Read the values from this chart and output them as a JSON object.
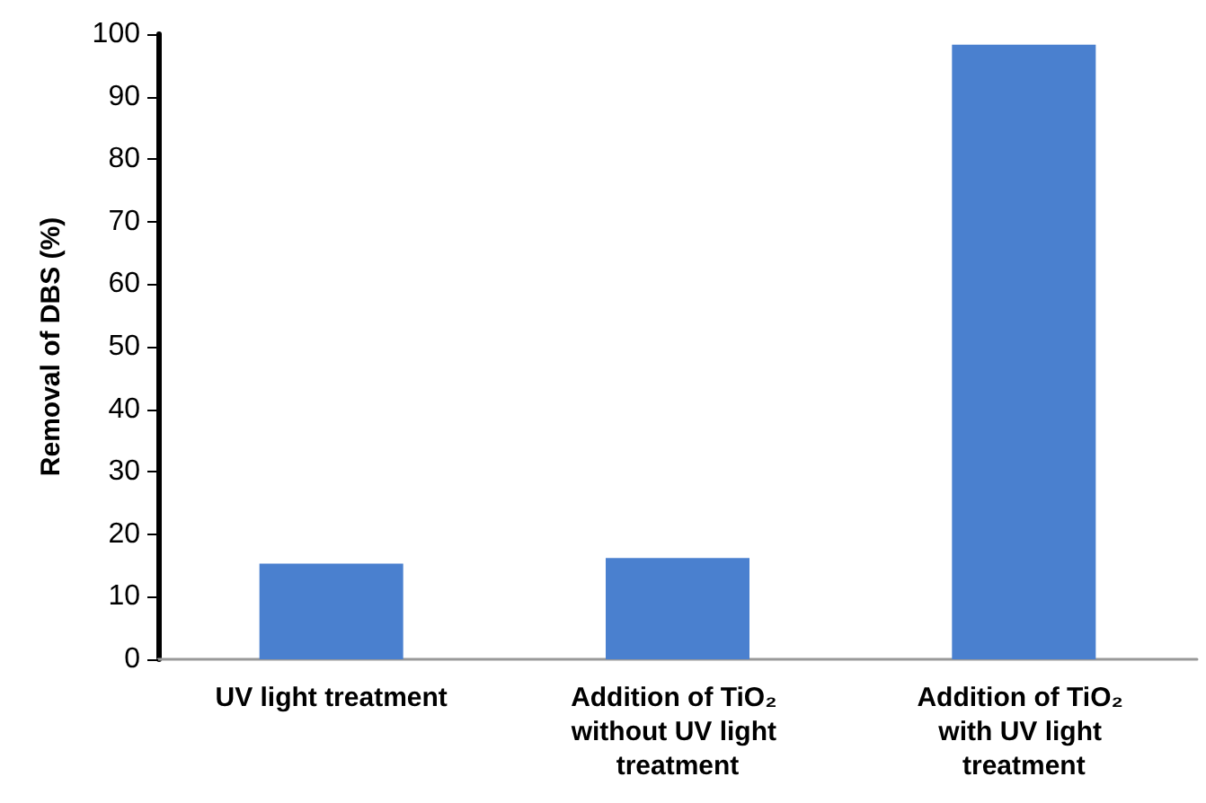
{
  "chart_data": {
    "type": "bar",
    "ylabel": "Removal of DBS (%)",
    "categories": [
      "UV light treatment",
      "Addition of TiO₂ without UV light treatment",
      "Addition of TiO₂ with UV light treatment"
    ],
    "values": [
      15.3,
      16.2,
      98.3
    ],
    "color": "#4a80cf",
    "ylim": [
      0,
      100
    ],
    "yticks": [
      0,
      10,
      20,
      30,
      40,
      50,
      60,
      70,
      80,
      90,
      100
    ],
    "grid": false
  }
}
